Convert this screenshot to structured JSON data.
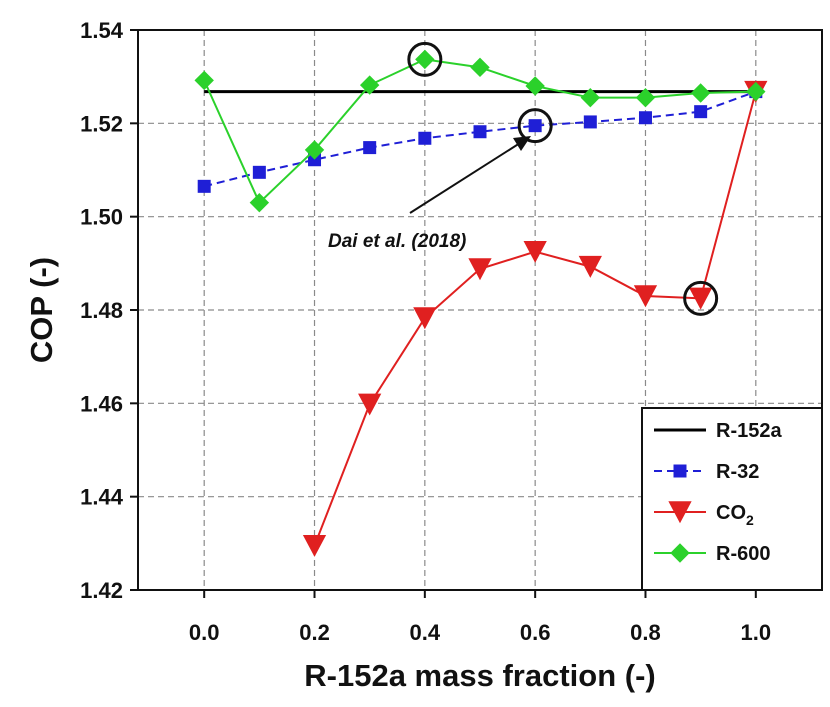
{
  "chart_data": {
    "type": "line",
    "xlabel": "R-152a mass fraction (-)",
    "ylabel": "COP (-)",
    "xlim": [
      -0.12,
      1.12
    ],
    "ylim": [
      1.42,
      1.54
    ],
    "x_ticks": [
      "0.0",
      "0.2",
      "0.4",
      "0.6",
      "0.8",
      "1.0"
    ],
    "y_ticks": [
      "1.42",
      "1.44",
      "1.46",
      "1.48",
      "1.50",
      "1.52",
      "1.54"
    ],
    "grid": true,
    "legend_position": "bottom-right",
    "annotation": {
      "text": "Dai et al. (2018)",
      "points_to": {
        "x": 0.6,
        "y": 1.5195
      }
    },
    "highlighted_points": [
      {
        "x": 0.4,
        "y": 1.5337
      },
      {
        "x": 0.6,
        "y": 1.5195
      },
      {
        "x": 0.9,
        "y": 1.4825
      }
    ],
    "series": [
      {
        "name": "R-152a",
        "color": "#000000",
        "marker": "none",
        "x": [
          0.0,
          1.0
        ],
        "y": [
          1.5268,
          1.5268
        ]
      },
      {
        "name": "R-32",
        "color": "#1f1fd6",
        "marker": "square",
        "x": [
          0.0,
          0.1,
          0.2,
          0.3,
          0.4,
          0.5,
          0.6,
          0.7,
          0.8,
          0.9,
          1.0
        ],
        "y": [
          1.5065,
          1.5095,
          1.5122,
          1.5148,
          1.5168,
          1.5182,
          1.5195,
          1.5203,
          1.5212,
          1.5225,
          1.5268
        ]
      },
      {
        "name": "CO2",
        "name_main": "CO",
        "name_sub": "2",
        "color": "#e02020",
        "marker": "triangle-down",
        "x": [
          0.2,
          0.3,
          0.4,
          0.5,
          0.6,
          0.7,
          0.8,
          0.9,
          1.0
        ],
        "y": [
          1.4295,
          1.4598,
          1.4783,
          1.4888,
          1.4925,
          1.4893,
          1.483,
          1.4825,
          1.5268
        ]
      },
      {
        "name": "R-600",
        "color": "#2bd12b",
        "marker": "diamond",
        "x": [
          0.0,
          0.1,
          0.2,
          0.3,
          0.4,
          0.5,
          0.6,
          0.7,
          0.8,
          0.9,
          1.0
        ],
        "y": [
          1.5292,
          1.503,
          1.5143,
          1.5282,
          1.5337,
          1.532,
          1.528,
          1.5255,
          1.5255,
          1.5265,
          1.5268
        ]
      }
    ]
  }
}
